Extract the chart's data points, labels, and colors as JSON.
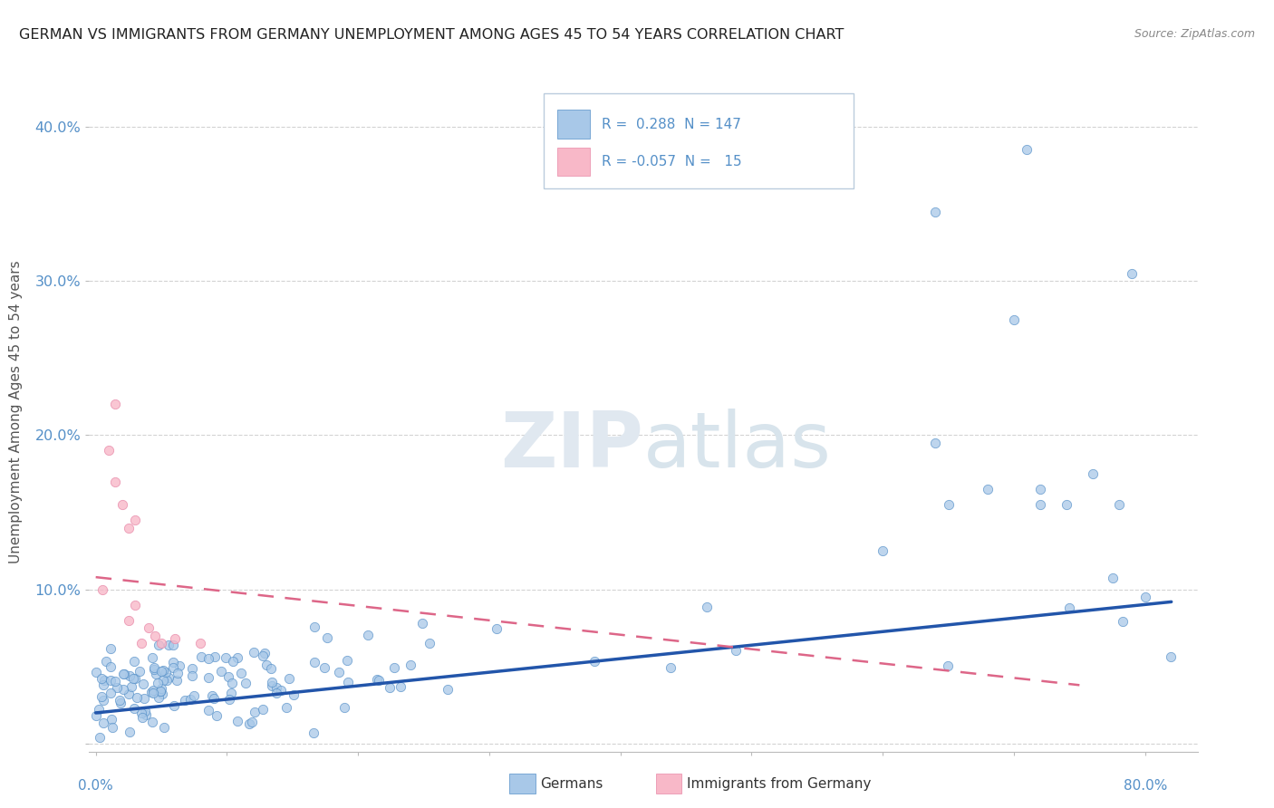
{
  "title": "GERMAN VS IMMIGRANTS FROM GERMANY UNEMPLOYMENT AMONG AGES 45 TO 54 YEARS CORRELATION CHART",
  "source": "Source: ZipAtlas.com",
  "ylabel": "Unemployment Among Ages 45 to 54 years",
  "ytick_labels": [
    "",
    "10.0%",
    "20.0%",
    "30.0%",
    "40.0%"
  ],
  "yticks": [
    0.0,
    0.1,
    0.2,
    0.3,
    0.4
  ],
  "xlim": [
    -0.005,
    0.84
  ],
  "ylim": [
    -0.005,
    0.435
  ],
  "blue_color": "#a8c8e8",
  "blue_edge": "#5590c8",
  "blue_line_color": "#2255aa",
  "pink_color": "#f8b8c8",
  "pink_edge": "#e888a8",
  "pink_line_color": "#dd6688",
  "legend_R_blue": "0.288",
  "legend_N_blue": "147",
  "legend_R_pink": "-0.057",
  "legend_N_pink": "15",
  "watermark_ZIP": "ZIP",
  "watermark_atlas": "atlas",
  "background_color": "#ffffff",
  "grid_color": "#c8c8c8",
  "title_color": "#222222",
  "source_color": "#888888",
  "tick_color": "#5590c8",
  "label_color": "#555555"
}
